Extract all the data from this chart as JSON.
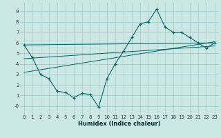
{
  "xlabel": "Humidex (Indice chaleur)",
  "ylabel": "",
  "bg_color": "#cce8e4",
  "grid_color": "#99cccc",
  "line_color": "#006666",
  "xlim": [
    -0.5,
    23.5
  ],
  "ylim": [
    -0.8,
    9.8
  ],
  "xticks": [
    0,
    1,
    2,
    3,
    4,
    5,
    6,
    7,
    8,
    9,
    10,
    11,
    12,
    13,
    14,
    15,
    16,
    17,
    18,
    19,
    20,
    21,
    22,
    23
  ],
  "yticks": [
    0,
    1,
    2,
    3,
    4,
    5,
    6,
    7,
    8,
    9
  ],
  "ytick_labels": [
    "-0",
    "1",
    "2",
    "3",
    "4",
    "5",
    "6",
    "7",
    "8",
    "9"
  ],
  "curve_x": [
    0,
    1,
    2,
    3,
    4,
    5,
    6,
    7,
    8,
    9,
    10,
    11,
    12,
    13,
    14,
    15,
    16,
    17,
    18,
    19,
    20,
    21,
    22,
    23
  ],
  "curve_y": [
    5.8,
    4.6,
    3.0,
    2.6,
    1.4,
    1.3,
    0.8,
    1.2,
    1.1,
    -0.1,
    2.6,
    4.0,
    5.2,
    6.5,
    7.8,
    8.0,
    9.2,
    7.5,
    7.0,
    7.0,
    6.5,
    6.0,
    5.5,
    6.0
  ],
  "line1_x": [
    0,
    23
  ],
  "line1_y": [
    5.8,
    6.0
  ],
  "line2_x": [
    0,
    23
  ],
  "line2_y": [
    3.2,
    6.1
  ],
  "line3_x": [
    0,
    23
  ],
  "line3_y": [
    4.5,
    5.7
  ]
}
